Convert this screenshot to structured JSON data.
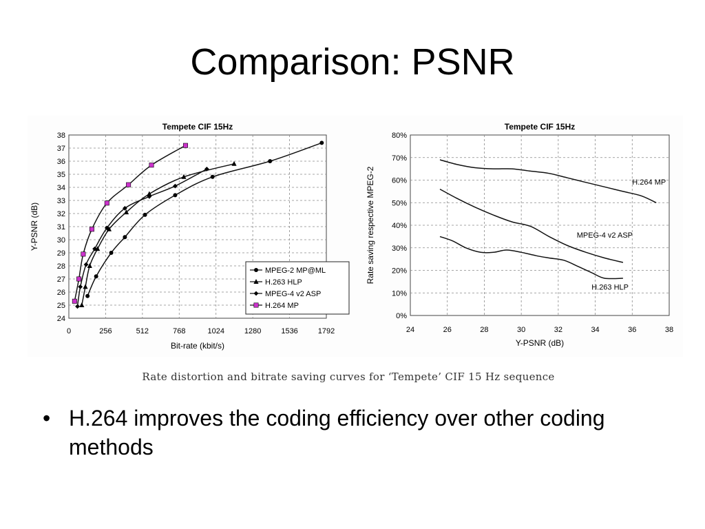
{
  "slide": {
    "title": "Comparison: PSNR",
    "caption": "Rate distortion and bitrate saving curves for ‘Tempete’ CIF 15 Hz sequence",
    "bullets": [
      {
        "marker": "•",
        "text": "H.264 improves the coding efficiency over other coding methods"
      }
    ]
  },
  "chart_data": [
    {
      "type": "line",
      "title": "Tempete CIF 15Hz",
      "xlabel": "Bit-rate (kbit/s)",
      "ylabel": "Y-PSNR (dB)",
      "xlim": [
        0,
        1792
      ],
      "ylim": [
        24,
        38
      ],
      "xticks": [
        "0",
        "256",
        "512",
        "768",
        "1024",
        "1280",
        "1536",
        "1792"
      ],
      "yticks": [
        "24",
        "25",
        "26",
        "27",
        "28",
        "29",
        "30",
        "31",
        "32",
        "33",
        "34",
        "35",
        "36",
        "37",
        "38"
      ],
      "grid": true,
      "legend_position": "bottom-right",
      "series": [
        {
          "name": "MPEG-2 MP@ML",
          "marker": "circle",
          "color": "#000000",
          "x": [
            130,
            190,
            295,
            390,
            530,
            740,
            1000,
            1400,
            1760
          ],
          "y": [
            25.7,
            27.2,
            29.0,
            30.2,
            31.9,
            33.4,
            34.8,
            36.0,
            37.4
          ]
        },
        {
          "name": "H.263 HLP",
          "marker": "triangle",
          "color": "#000000",
          "x": [
            90,
            115,
            145,
            200,
            280,
            400,
            560,
            800,
            1150
          ],
          "y": [
            25.0,
            26.4,
            28.0,
            29.3,
            30.8,
            32.1,
            33.5,
            34.8,
            35.8
          ]
        },
        {
          "name": "MPEG-4 v2 ASP",
          "marker": "diamond",
          "color": "#000000",
          "x": [
            60,
            80,
            120,
            180,
            265,
            390,
            560,
            740,
            960
          ],
          "y": [
            24.9,
            26.4,
            28.1,
            29.3,
            30.9,
            32.4,
            33.3,
            34.1,
            35.4
          ]
        },
        {
          "name": "H.264 MP",
          "marker": "square",
          "color": "#cc33cc",
          "x": [
            40,
            70,
            100,
            160,
            265,
            415,
            575,
            812
          ],
          "y": [
            25.3,
            27.0,
            28.9,
            30.8,
            32.8,
            34.2,
            35.7,
            37.2
          ]
        }
      ]
    },
    {
      "type": "line",
      "title": "Tempete CIF 15Hz",
      "xlabel": "Y-PSNR (dB)",
      "ylabel": "Rate saving respective MPEG-2",
      "xlim": [
        24,
        38
      ],
      "ylim": [
        0,
        80
      ],
      "xticks": [
        "24",
        "26",
        "28",
        "30",
        "32",
        "34",
        "36",
        "38"
      ],
      "yticks": [
        "0%",
        "10%",
        "20%",
        "30%",
        "40%",
        "50%",
        "60%",
        "70%",
        "80%"
      ],
      "grid": true,
      "legend_position": "none",
      "series": [
        {
          "name": "H.264 MP",
          "color": "#000000",
          "x": [
            25.6,
            26.5,
            27.5,
            28.5,
            29.5,
            30.5,
            31.5,
            32.5,
            33.5,
            34.5,
            35.5,
            36.5,
            37.3
          ],
          "y": [
            69,
            67,
            65.5,
            65,
            65,
            64,
            63,
            61,
            59,
            57,
            55,
            53,
            50
          ]
        },
        {
          "name": "MPEG-4 v2 ASP",
          "color": "#000000",
          "x": [
            25.6,
            26.5,
            27.5,
            28.5,
            29.5,
            30.5,
            31.5,
            32.5,
            33.5,
            34.5,
            35.5
          ],
          "y": [
            56,
            52,
            48,
            44.5,
            41.5,
            39.5,
            35,
            31,
            28,
            25.5,
            23.5
          ]
        },
        {
          "name": "H.263 HLP",
          "color": "#000000",
          "x": [
            25.6,
            26.3,
            27.0,
            27.8,
            28.5,
            29.2,
            30.0,
            30.8,
            31.5,
            32.3,
            33.0,
            33.8,
            34.5,
            35.5
          ],
          "y": [
            35,
            33,
            30,
            28,
            28,
            29,
            28,
            26.5,
            25.5,
            24.5,
            22,
            19,
            16.5,
            16.5
          ]
        }
      ]
    }
  ]
}
